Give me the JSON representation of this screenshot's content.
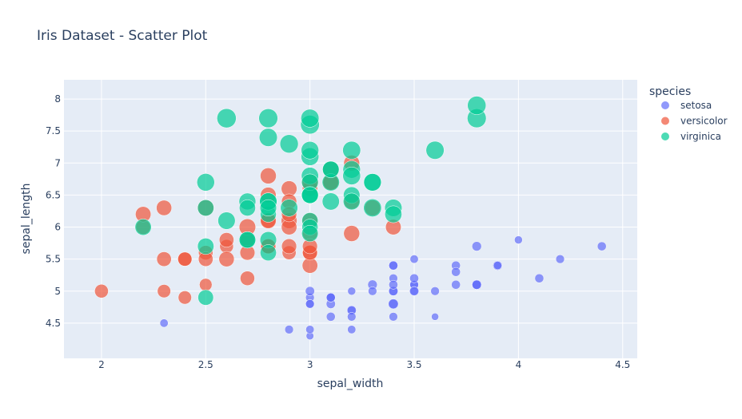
{
  "chart_data": {
    "type": "scatter",
    "title": "Iris Dataset - Scatter Plot",
    "xlabel": "sepal_width",
    "ylabel": "sepal_length",
    "xlim": [
      1.82,
      4.57
    ],
    "ylim": [
      3.95,
      8.3
    ],
    "xticks": [
      2,
      2.5,
      3,
      3.5,
      4,
      4.5
    ],
    "yticks": [
      4.5,
      5,
      5.5,
      6,
      6.5,
      7,
      7.5,
      8
    ],
    "grid": true,
    "background": "#E5ECF6",
    "marker_opacity": 0.7,
    "legend": {
      "title": "species",
      "placement": "right"
    },
    "series": [
      {
        "name": "setosa",
        "color": "#636efa",
        "x": [
          3.5,
          3.0,
          3.2,
          3.1,
          3.6,
          3.9,
          3.4,
          3.4,
          2.9,
          3.1,
          3.7,
          3.4,
          3.0,
          3.0,
          4.0,
          4.4,
          3.9,
          3.5,
          3.8,
          3.8,
          3.4,
          3.7,
          3.6,
          3.3,
          3.4,
          3.0,
          3.4,
          3.5,
          3.4,
          3.2,
          3.1,
          3.4,
          4.1,
          4.2,
          3.1,
          3.2,
          3.5,
          3.1,
          3.0,
          3.4,
          3.5,
          2.3,
          3.2,
          3.5,
          3.8,
          3.0,
          3.8,
          3.2,
          3.7,
          3.3
        ],
        "y": [
          5.1,
          4.9,
          4.7,
          4.6,
          5.0,
          5.4,
          4.6,
          5.0,
          4.4,
          4.9,
          5.4,
          4.8,
          4.8,
          4.3,
          5.8,
          5.7,
          5.4,
          5.1,
          5.7,
          5.1,
          5.4,
          5.1,
          4.6,
          5.1,
          4.8,
          5.0,
          5.0,
          5.2,
          5.2,
          4.7,
          4.8,
          5.4,
          5.2,
          5.5,
          4.9,
          5.0,
          5.5,
          4.9,
          4.4,
          5.1,
          5.0,
          4.5,
          4.4,
          5.0,
          5.1,
          4.8,
          5.1,
          4.6,
          5.3,
          5.0
        ],
        "size": [
          1.4,
          1.4,
          1.3,
          1.5,
          1.4,
          1.7,
          1.4,
          1.5,
          1.4,
          1.5,
          1.5,
          1.6,
          1.4,
          1.1,
          1.2,
          1.5,
          1.3,
          1.4,
          1.7,
          1.5,
          1.7,
          1.5,
          1.0,
          1.7,
          1.9,
          1.6,
          1.6,
          1.5,
          1.4,
          1.6,
          1.6,
          1.5,
          1.5,
          1.4,
          1.5,
          1.2,
          1.3,
          1.5,
          1.3,
          1.5,
          1.3,
          1.3,
          1.3,
          1.6,
          1.9,
          1.4,
          1.6,
          1.4,
          1.5,
          1.4
        ]
      },
      {
        "name": "versicolor",
        "color": "#EF553B",
        "x": [
          3.2,
          3.2,
          3.1,
          2.3,
          2.8,
          2.8,
          3.3,
          2.4,
          2.9,
          2.7,
          2.0,
          3.0,
          2.2,
          2.9,
          2.9,
          3.1,
          3.0,
          2.7,
          2.2,
          2.5,
          3.2,
          2.8,
          2.5,
          2.8,
          2.9,
          3.0,
          2.8,
          3.0,
          2.9,
          2.6,
          2.4,
          2.4,
          2.7,
          2.7,
          3.0,
          3.4,
          3.1,
          2.3,
          3.0,
          2.5,
          2.6,
          3.0,
          2.6,
          2.3,
          2.7,
          3.0,
          2.9,
          2.9,
          2.5,
          2.8
        ],
        "y": [
          7.0,
          6.4,
          6.9,
          5.5,
          6.5,
          5.7,
          6.3,
          4.9,
          6.6,
          5.2,
          5.0,
          5.9,
          6.0,
          6.1,
          5.6,
          6.7,
          5.6,
          5.8,
          6.2,
          5.6,
          5.9,
          6.1,
          6.3,
          6.1,
          6.4,
          6.6,
          6.8,
          6.7,
          6.0,
          5.7,
          5.5,
          5.5,
          5.8,
          6.0,
          5.4,
          6.0,
          6.7,
          6.3,
          5.6,
          5.5,
          5.5,
          6.1,
          5.8,
          5.0,
          5.6,
          5.7,
          5.7,
          6.2,
          5.1,
          5.7
        ],
        "size": [
          4.7,
          4.5,
          4.9,
          4.0,
          4.6,
          4.5,
          4.7,
          3.3,
          4.6,
          3.9,
          3.5,
          4.2,
          4.0,
          4.7,
          3.6,
          4.4,
          4.5,
          4.1,
          4.5,
          3.9,
          4.8,
          4.0,
          4.9,
          4.7,
          4.3,
          4.4,
          4.8,
          5.0,
          4.5,
          3.5,
          3.8,
          3.7,
          3.9,
          5.1,
          4.5,
          4.5,
          4.7,
          4.4,
          4.1,
          4.0,
          4.4,
          4.6,
          4.0,
          3.3,
          4.2,
          4.2,
          4.2,
          4.3,
          3.0,
          4.1
        ]
      },
      {
        "name": "virginica",
        "color": "#00cc96",
        "x": [
          3.3,
          2.7,
          3.0,
          2.9,
          3.0,
          3.0,
          2.5,
          2.9,
          2.5,
          3.6,
          3.2,
          2.7,
          3.0,
          2.5,
          2.8,
          3.2,
          3.0,
          3.8,
          2.6,
          2.2,
          3.2,
          2.8,
          2.8,
          2.7,
          3.3,
          3.2,
          2.8,
          3.0,
          2.8,
          3.0,
          2.8,
          3.8,
          2.8,
          2.8,
          2.6,
          3.0,
          3.4,
          3.1,
          3.0,
          3.1,
          3.1,
          3.1,
          2.7,
          3.2,
          3.3,
          3.0,
          2.5,
          3.0,
          3.4,
          3.0
        ],
        "y": [
          6.3,
          5.8,
          7.1,
          6.3,
          6.5,
          7.6,
          4.9,
          7.3,
          6.7,
          7.2,
          6.5,
          6.4,
          6.8,
          5.7,
          5.8,
          6.4,
          6.5,
          7.7,
          7.7,
          6.0,
          6.9,
          5.6,
          7.7,
          6.3,
          6.7,
          7.2,
          6.2,
          6.1,
          6.4,
          7.2,
          7.4,
          7.9,
          6.4,
          6.3,
          6.1,
          7.7,
          6.3,
          6.4,
          6.0,
          6.9,
          6.7,
          6.9,
          5.8,
          6.8,
          6.7,
          6.7,
          6.3,
          6.5,
          6.2,
          5.9
        ],
        "size": [
          6.0,
          5.1,
          5.9,
          5.6,
          5.8,
          6.6,
          4.5,
          6.3,
          5.8,
          6.1,
          5.1,
          5.3,
          5.5,
          5.0,
          5.1,
          5.3,
          5.5,
          6.7,
          6.9,
          5.0,
          5.7,
          4.9,
          6.7,
          4.9,
          5.7,
          6.0,
          4.8,
          4.9,
          5.6,
          5.8,
          6.1,
          6.4,
          5.6,
          5.1,
          5.6,
          6.1,
          5.6,
          5.5,
          4.8,
          5.4,
          5.6,
          5.1,
          5.1,
          5.9,
          5.7,
          5.2,
          5.0,
          5.2,
          5.4,
          5.1
        ]
      }
    ]
  }
}
